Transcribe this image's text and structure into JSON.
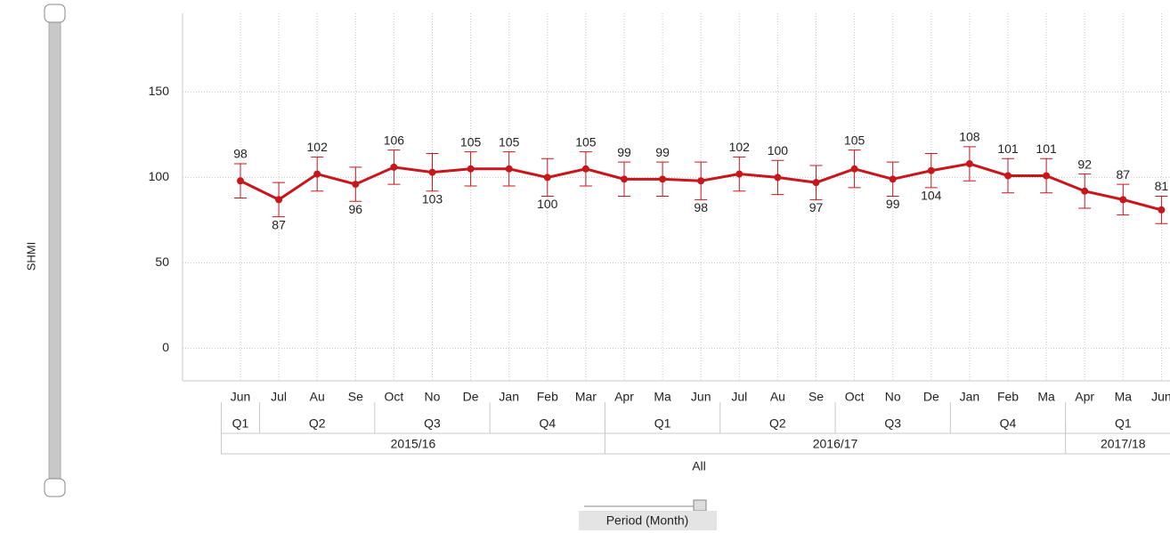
{
  "chart_data": {
    "type": "line",
    "y_label": "SHMI",
    "x_label": "Period (Month)",
    "categories": [
      "Jun",
      "Jul",
      "Au",
      "Se",
      "Oct",
      "No",
      "De",
      "Jan",
      "Feb",
      "Mar",
      "Apr",
      "Ma",
      "Jun",
      "Jul",
      "Au",
      "Se",
      "Oct",
      "No",
      "De",
      "Jan",
      "Feb",
      "Ma",
      "Apr",
      "Ma",
      "Jun"
    ],
    "quarters": [
      "Q1",
      "Q2",
      "Q3",
      "Q4",
      "Q1",
      "Q2",
      "Q3",
      "Q4",
      "Q1"
    ],
    "years": [
      "2015/16",
      "2016/17",
      "2017/18"
    ],
    "all_label": "All",
    "series": [
      {
        "name": "SHMI",
        "color": "#c8161d",
        "values": [
          98,
          87,
          102,
          96,
          106,
          103,
          105,
          105,
          100,
          105,
          99,
          99,
          98,
          102,
          100,
          97,
          105,
          99,
          104,
          108,
          101,
          101,
          92,
          87,
          81
        ],
        "errors": [
          10,
          10,
          10,
          10,
          10,
          11,
          10,
          10,
          11,
          10,
          10,
          10,
          11,
          10,
          10,
          10,
          11,
          10,
          10,
          10,
          10,
          10,
          10,
          9,
          8
        ]
      }
    ],
    "ylim": [
      -19,
      196
    ],
    "yticks": [
      0,
      50,
      100,
      150
    ],
    "grid": true
  }
}
